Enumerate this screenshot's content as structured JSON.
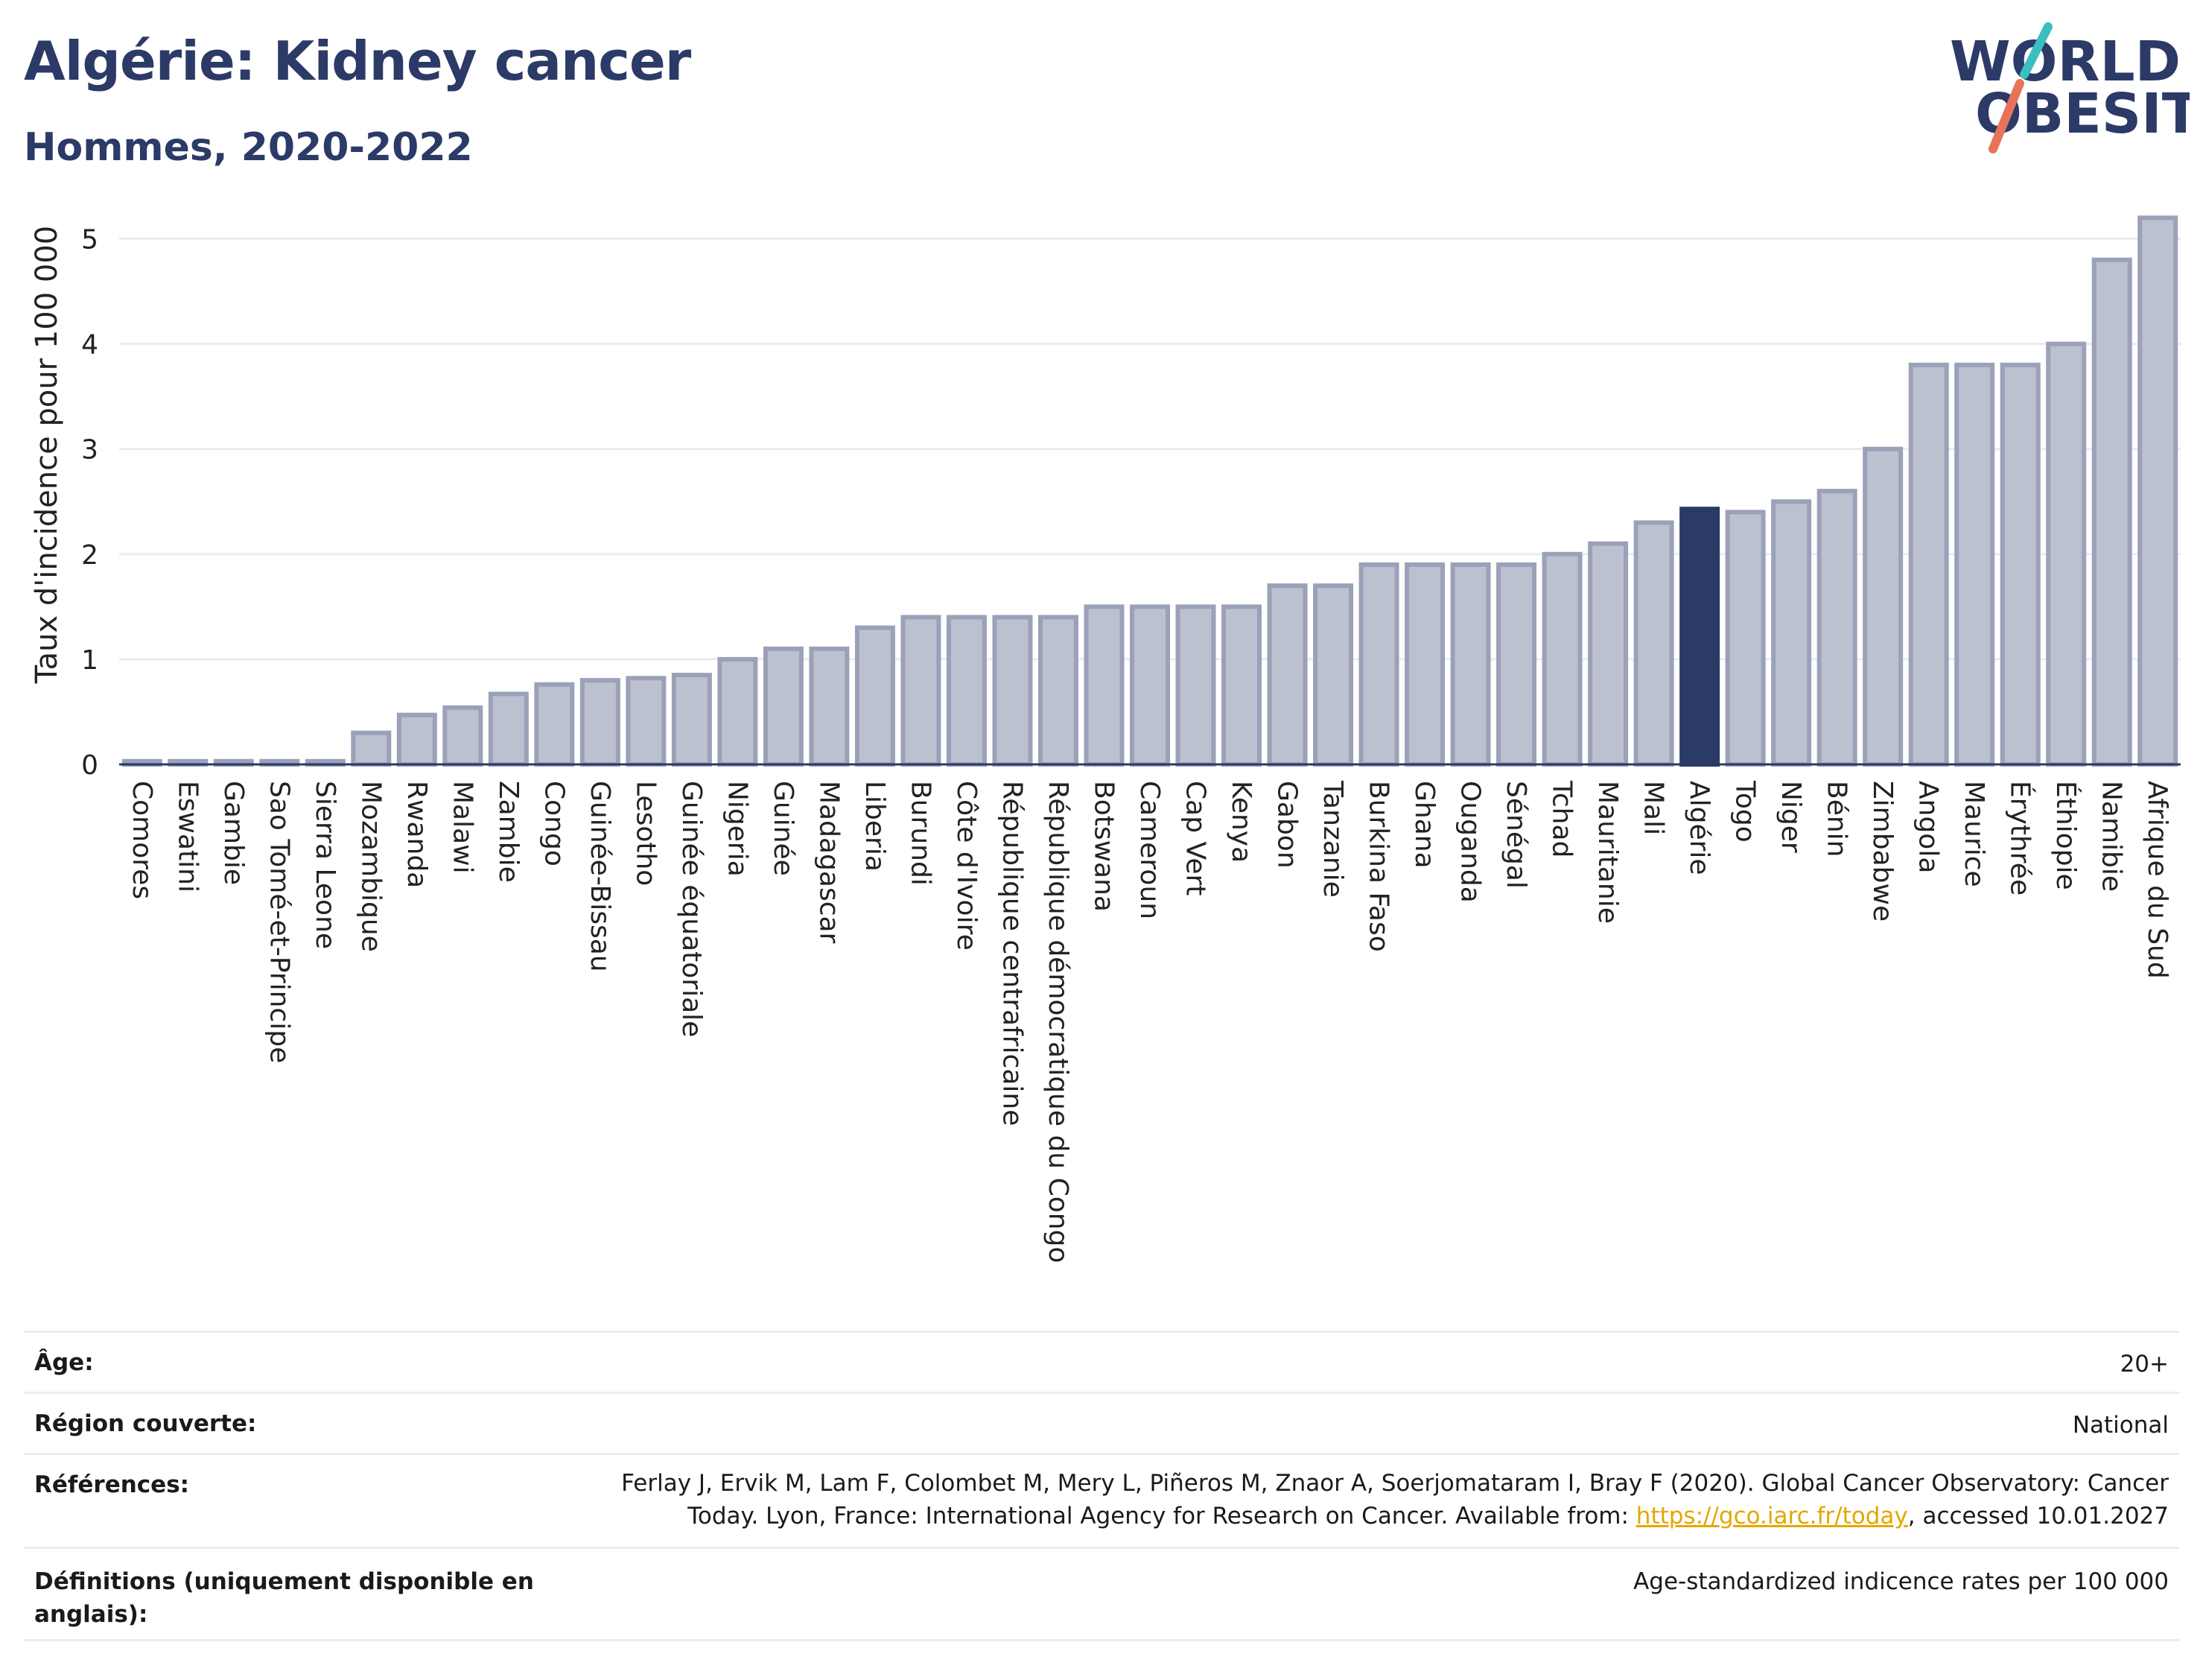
{
  "title": "Algérie: Kidney cancer",
  "subtitle": "Hommes, 2020-2022",
  "logo": {
    "line1": "WORLD",
    "line2": "OBESITY",
    "accent_teal": "#3bbfbf",
    "accent_coral": "#e8735a",
    "text_color": "#2b3a67"
  },
  "colors": {
    "bar": "#bcc1cf",
    "bar_stroke": "#9aa1b8",
    "highlight": "#2b3a67",
    "grid": "#e8ecf2"
  },
  "chart_data": {
    "type": "bar",
    "ylabel": "Taux d'incidence pour 100 000",
    "xlabel": "",
    "ylim": [
      0,
      5.5
    ],
    "yticks": [
      0,
      1,
      2,
      3,
      4,
      5
    ],
    "grid": true,
    "highlight": "Algérie",
    "categories": [
      "Comores",
      "Eswatini",
      "Gambie",
      "Sao Tomé-et-Principe",
      "Sierra Leone",
      "Mozambique",
      "Rwanda",
      "Malawi",
      "Zambie",
      "Congo",
      "Guinée-Bissau",
      "Lesotho",
      "Guinée équatoriale",
      "Nigeria",
      "Guinée",
      "Madagascar",
      "Liberia",
      "Burundi",
      "Côte d'Ivoire",
      "République centrafricaine",
      "République démocratique du Congo",
      "Botswana",
      "Cameroun",
      "Cap Vert",
      "Kenya",
      "Gabon",
      "Tanzanie",
      "Burkina Faso",
      "Ghana",
      "Ouganda",
      "Sénégal",
      "Tchad",
      "Mauritanie",
      "Mali",
      "Algérie",
      "Togo",
      "Niger",
      "Bénin",
      "Zimbabwe",
      "Angola",
      "Maurice",
      "Érythrée",
      "Éthiopie",
      "Namibie",
      "Afrique du Sud"
    ],
    "values": [
      0.03,
      0.03,
      0.03,
      0.03,
      0.03,
      0.3,
      0.47,
      0.54,
      0.67,
      0.76,
      0.8,
      0.82,
      0.85,
      1.0,
      1.1,
      1.1,
      1.3,
      1.4,
      1.4,
      1.4,
      1.4,
      1.5,
      1.5,
      1.5,
      1.5,
      1.7,
      1.7,
      1.9,
      1.9,
      1.9,
      1.9,
      2.0,
      2.1,
      2.3,
      2.43,
      2.4,
      2.5,
      2.6,
      3.0,
      3.8,
      3.8,
      3.8,
      4.0,
      4.8,
      5.2
    ]
  },
  "info": [
    {
      "key": "Âge:",
      "value": "20+"
    },
    {
      "key": "Région couverte:",
      "value": "National"
    },
    {
      "key": "Références:",
      "value_line1": "Ferlay J, Ervik M, Lam F, Colombet M, Mery L, Piñeros M, Znaor A, Soerjomataram I, Bray F (2020). Global Cancer Observatory: Cancer",
      "value_line2_pre": "Today. Lyon, France: International Agency for Research on Cancer. Available from: ",
      "link": "https://gco.iarc.fr/today",
      "value_line2_post": ", accessed 10.01.2027"
    },
    {
      "key": "Définitions (uniquement disponible en anglais):",
      "value": "Age-standardized indicence rates per 100 000"
    }
  ]
}
